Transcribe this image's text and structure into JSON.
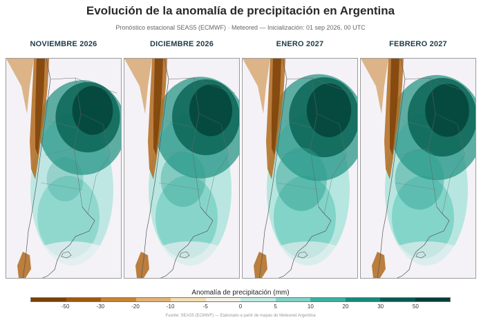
{
  "title": "Evolución de la anomalía de precipitación en Argentina",
  "subtitle": "Pronóstico estacional SEAS5 (ECMWF) · Meteored — Inicialización: 01 sep 2026, 00 UTC",
  "panels": [
    {
      "label": "NOVIEMBRE 2026",
      "intensity": 0.55
    },
    {
      "label": "DICIEMBRE 2026",
      "intensity": 0.75
    },
    {
      "label": "ENERO 2027",
      "intensity": 0.9
    },
    {
      "label": "FEBRERO 2027",
      "intensity": 0.85
    }
  ],
  "colorbar": {
    "title": "Anomalía de precipitación (mm)",
    "ticks": [
      "-50",
      "-30",
      "-20",
      "-10",
      "-5",
      "0",
      "5",
      "10",
      "20",
      "30",
      "50"
    ],
    "colors": [
      "#7a3f06",
      "#a0580d",
      "#c9822e",
      "#e0b272",
      "#f2dcb0",
      "#f6f0e6",
      "#bfe9e2",
      "#7fd2c5",
      "#3bb0a0",
      "#138a7a",
      "#05594f",
      "#033d36"
    ]
  },
  "source": "Fuente: SEAS5 (ECMWF) — Elaborado a partir de mapas de Meteored Argentina"
}
